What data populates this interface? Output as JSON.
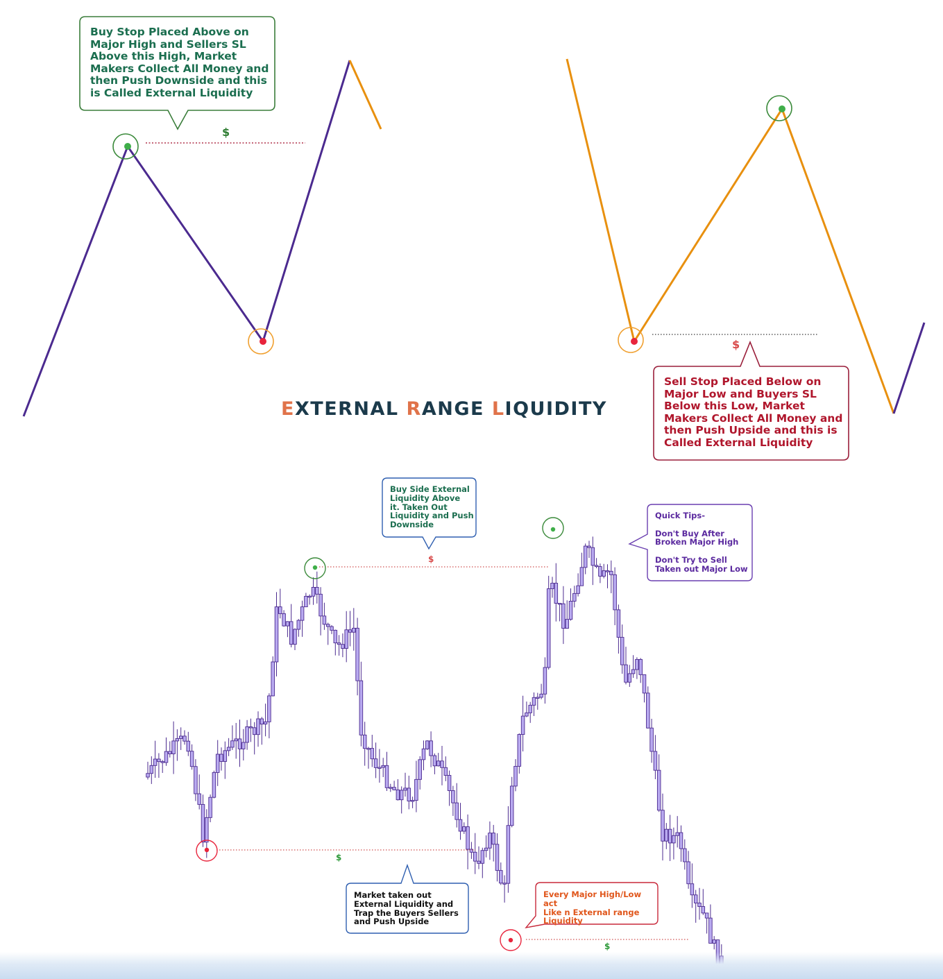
{
  "title": {
    "first_initial": "E",
    "first_rest": "XTERNAL ",
    "second_initial": "R",
    "second_rest": "ANGE ",
    "third_initial": "L",
    "third_rest": "IQUIDITY",
    "text_color": "#1b3a4b",
    "accent_color": "#e0734a"
  },
  "top_left_diagram": {
    "line_color": "#4b2a8f",
    "tail_color": "#e8900f",
    "high_marker_color": "#3fae49",
    "low_marker_color": "#e8243c",
    "dollar": "$",
    "dollar_color": "#2e7d32",
    "callout": {
      "text": "Buy Stop Placed Above on\nMajor High and Sellers SL\nAbove this High, Market\nMakers Collect All Money and\nthen Push Downside  and this\nis Called External Liquidity",
      "color": "#1b6e4f",
      "border": "#3a7d3a"
    }
  },
  "top_right_diagram": {
    "line_color": "#e8900f",
    "tail_color": "#4b2a8f",
    "dollar": "$",
    "dollar_color": "#d84a4a",
    "callout": {
      "text": "Sell Stop Placed Below on\nMajor Low and Buyers SL\nBelow this Low, Market\nMakers Collect All Money and\nthen Push Upside  and this is\nCalled External Liquidity",
      "color": "#b0162c",
      "border": "#9a1e3a"
    }
  },
  "chart": {
    "candle_body_color": "#b9aaf0",
    "candle_edge_color": "#4b2a8f",
    "dollars": {
      "top": "$",
      "bottom_left": "$",
      "bottom_right": "$"
    },
    "callouts": {
      "buy_side": {
        "text": "Buy Side External\nLiquidity  Above\nit. Taken Out\nLiquidity and Push\nDownside",
        "color": "#1b6e4f",
        "border": "#2f5fb0"
      },
      "quick_tips": {
        "text": "Quick Tips-\n\nDon't Buy After\nBroken Major High\n\nDon't Try to Sell\nTaken out Major Low",
        "color": "#5b2a9f",
        "border": "#6a3fb0"
      },
      "market_taken": {
        "text": "Market taken out\nExternal Liquidity and\nTrap the   Buyers Sellers\nand Push Upside",
        "color": "#111111",
        "border": "#2f5fb0"
      },
      "every_major": {
        "text": "Every Major High/Low act\nLike n External range\nLiquidity",
        "color": "#e0561b",
        "border": "#c8283a"
      }
    }
  }
}
